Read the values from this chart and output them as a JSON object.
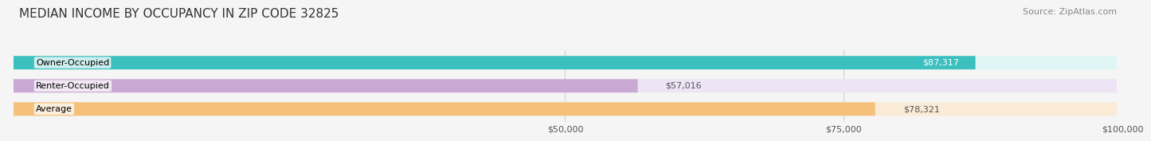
{
  "title": "MEDIAN INCOME BY OCCUPANCY IN ZIP CODE 32825",
  "source": "Source: ZipAtlas.com",
  "categories": [
    "Owner-Occupied",
    "Renter-Occupied",
    "Average"
  ],
  "values": [
    87317,
    57016,
    78321
  ],
  "labels": [
    "$87,317",
    "$57,016",
    "$78,321"
  ],
  "bar_colors": [
    "#3bbfbf",
    "#c9a8d4",
    "#f5c07a"
  ],
  "bar_bg_colors": [
    "#e0f5f5",
    "#ede5f5",
    "#faebd7"
  ],
  "label_colors": [
    "#ffffff",
    "#666666",
    "#666666"
  ],
  "xlim": [
    0,
    100000
  ],
  "xticks": [
    50000,
    75000,
    100000
  ],
  "xticklabels": [
    "$50,000",
    "$75,000",
    "$100,000"
  ],
  "title_fontsize": 11,
  "source_fontsize": 8,
  "tick_fontsize": 8,
  "bar_label_fontsize": 8,
  "cat_label_fontsize": 8,
  "background_color": "#f5f5f5",
  "bar_height": 0.58
}
